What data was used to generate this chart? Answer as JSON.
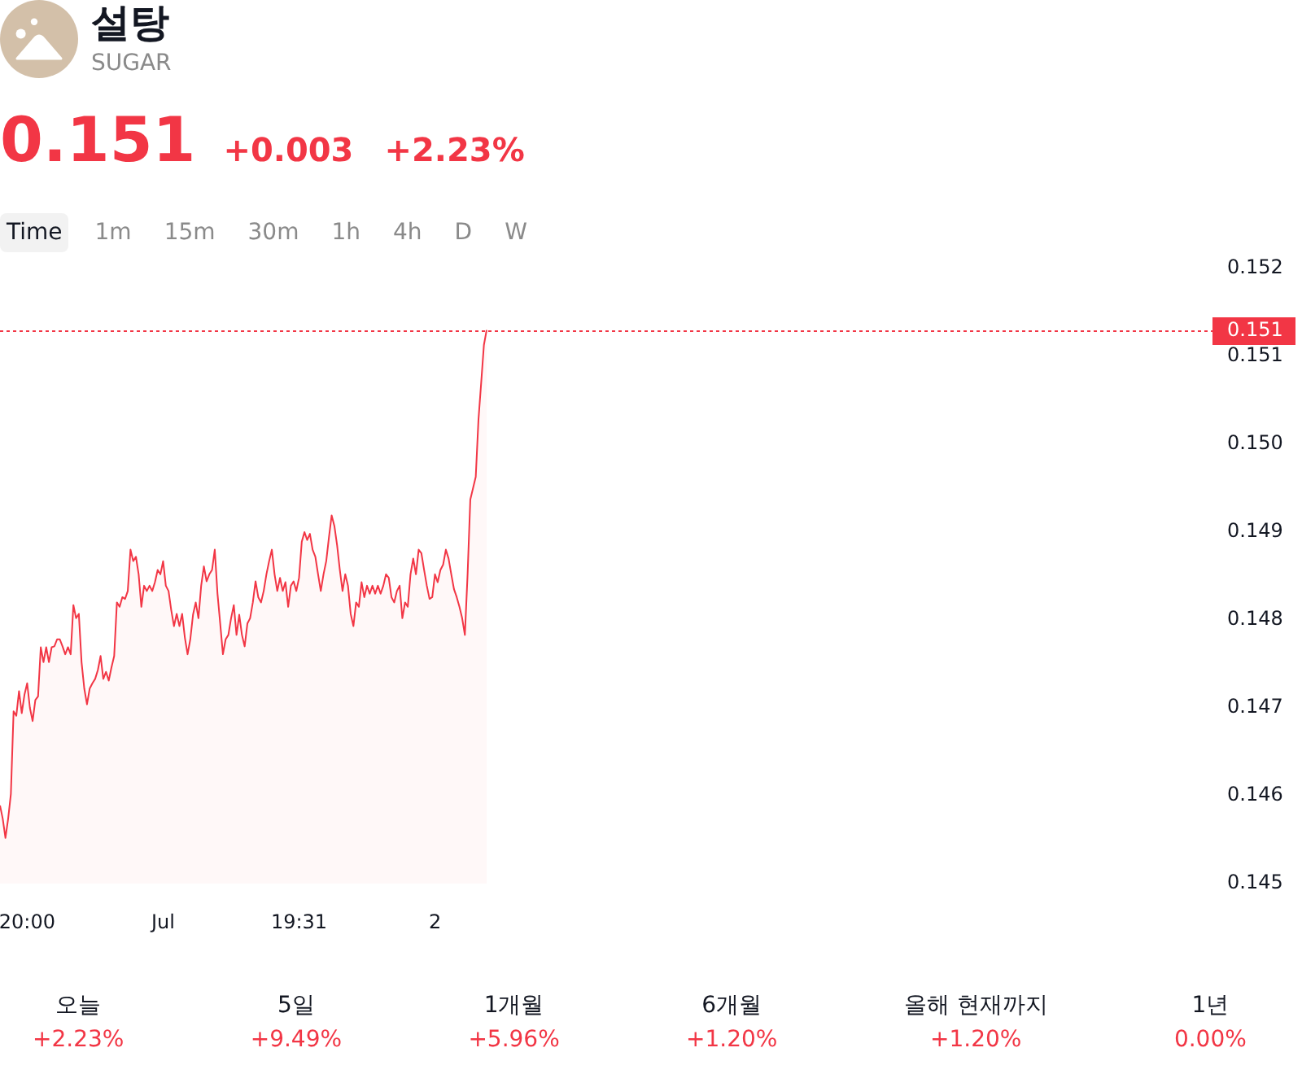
{
  "chart_data": [
    {
      "type": "other",
      "title": "설탕",
      "subtitle": "SUGAR",
      "annotations": [
        "0.151",
        "+0.003",
        "+2.23%"
      ],
      "color": "#f23645"
    },
    {
      "type": "other",
      "annotations": [
        "Time",
        "1m",
        "15m",
        "30m",
        "1h",
        "4h",
        "D",
        "W"
      ]
    },
    {
      "type": "area",
      "color": "#f23645",
      "categories": [
        null,
        null,
        null,
        null,
        null,
        null,
        null,
        null,
        null,
        null,
        "20:00",
        null,
        null,
        null,
        null,
        null,
        null,
        null,
        null,
        null,
        null,
        null,
        null,
        null,
        null,
        null,
        null,
        null,
        null,
        null,
        null,
        null,
        null,
        null,
        null,
        null,
        null,
        null,
        null,
        null,
        null,
        null,
        null,
        null,
        null,
        null,
        null,
        null,
        null,
        null,
        null,
        null,
        null,
        null,
        null,
        null,
        null,
        null,
        null,
        null,
        "Jul",
        null,
        null,
        null,
        null,
        null,
        null,
        null,
        null,
        null,
        null,
        null,
        null,
        null,
        null,
        null,
        null,
        null,
        null,
        null,
        null,
        null,
        null,
        null,
        null,
        null,
        null,
        null,
        null,
        null,
        null,
        null,
        null,
        null,
        null,
        null,
        null,
        null,
        null,
        null,
        null,
        null,
        null,
        null,
        null,
        null,
        null,
        null,
        null,
        null,
        "19:31",
        null,
        null,
        null,
        null,
        null,
        null,
        null,
        null,
        null,
        null,
        null,
        null,
        null,
        null,
        null,
        null,
        null,
        null,
        null,
        null,
        null,
        null,
        null,
        null,
        null,
        null,
        null,
        null,
        null,
        null,
        null,
        null,
        null,
        null,
        null,
        null,
        null,
        null,
        null,
        null,
        null,
        null,
        null,
        null,
        null,
        null,
        null,
        null,
        null,
        "2",
        null,
        null,
        null,
        null,
        null,
        null,
        null,
        null,
        null,
        null,
        null,
        null,
        null,
        null,
        null,
        null,
        null,
        null,
        null,
        null,
        null,
        null,
        null,
        null,
        null,
        null,
        null,
        null,
        null,
        null,
        null,
        null,
        null,
        null,
        null,
        null,
        null,
        null,
        null,
        null,
        null,
        null,
        null,
        null,
        null,
        null,
        null,
        null,
        null,
        null,
        null,
        null,
        null,
        null,
        null,
        null,
        null,
        null,
        null,
        null,
        null,
        null,
        null,
        null,
        null,
        null,
        null,
        null,
        null,
        null,
        null,
        null,
        null,
        null,
        null,
        null,
        null,
        null,
        null,
        null,
        null,
        null,
        null,
        null,
        null,
        null,
        null,
        null,
        null,
        null,
        null,
        null,
        null,
        null,
        null,
        null,
        null,
        null,
        null,
        null,
        null,
        null,
        null,
        null,
        null,
        null,
        null,
        null,
        null,
        null,
        null,
        null,
        null,
        null,
        null,
        null,
        null,
        null,
        null,
        null,
        null,
        null,
        null,
        null,
        null,
        null,
        null,
        null,
        null,
        null,
        null,
        null,
        null,
        null,
        null,
        null,
        null,
        null,
        null,
        null,
        null,
        null,
        null,
        null,
        null,
        null,
        null,
        null,
        null,
        null,
        null,
        null,
        null,
        null,
        null,
        null,
        null,
        null,
        null,
        null,
        null,
        null,
        null,
        null,
        null,
        null,
        null,
        null,
        null,
        null,
        null,
        null,
        null,
        null,
        null,
        null,
        null,
        null,
        null,
        null,
        null,
        null,
        null,
        null,
        null,
        null,
        null,
        null,
        null,
        null,
        null,
        null,
        null,
        null,
        null,
        null,
        null,
        null,
        null,
        null,
        null,
        null,
        null,
        null,
        null,
        null,
        null,
        null,
        null,
        null,
        null,
        null,
        null,
        null,
        null,
        null,
        null,
        null,
        null,
        null,
        null,
        null,
        null,
        null,
        null,
        null,
        null,
        null,
        null,
        null,
        null,
        null,
        null,
        null,
        null,
        null,
        null,
        null,
        null,
        null,
        null,
        null,
        null,
        null,
        null,
        null,
        null,
        null,
        null,
        null,
        null,
        null,
        null,
        null,
        null,
        null,
        null,
        null,
        null,
        null,
        null,
        null,
        null,
        null,
        null,
        null,
        null,
        null,
        null,
        null,
        null,
        null,
        null,
        null,
        null,
        null,
        null,
        null,
        null,
        null,
        null,
        null,
        null,
        null,
        null,
        null
      ],
      "values": [
        0.14589,
        0.14574,
        0.14552,
        0.14574,
        0.14602,
        0.14696,
        0.14691,
        0.14719,
        0.14694,
        0.14715,
        0.14728,
        0.147,
        0.14685,
        0.14709,
        0.14713,
        0.14769,
        0.14752,
        0.14769,
        0.14752,
        0.14769,
        0.1477,
        0.14778,
        0.14778,
        0.1477,
        0.14761,
        0.14769,
        0.14761,
        0.14817,
        0.14802,
        0.14807,
        0.14752,
        0.14722,
        0.14704,
        0.14722,
        0.14728,
        0.14733,
        0.14743,
        0.14759,
        0.14733,
        0.14741,
        0.14731,
        0.14746,
        0.14759,
        0.1482,
        0.14815,
        0.14826,
        0.14824,
        0.14833,
        0.1488,
        0.14867,
        0.14872,
        0.14852,
        0.14815,
        0.14839,
        0.14833,
        0.14839,
        0.14833,
        0.14843,
        0.14857,
        0.14852,
        0.14867,
        0.14839,
        0.14833,
        0.14811,
        0.14793,
        0.14807,
        0.14793,
        0.14807,
        0.1478,
        0.14761,
        0.14778,
        0.14806,
        0.1482,
        0.14802,
        0.14839,
        0.14861,
        0.14844,
        0.14852,
        0.14857,
        0.1488,
        0.1483,
        0.14796,
        0.14761,
        0.14778,
        0.14783,
        0.14802,
        0.14817,
        0.14783,
        0.14806,
        0.14783,
        0.1477,
        0.14796,
        0.14802,
        0.1482,
        0.14844,
        0.14826,
        0.1482,
        0.14833,
        0.14852,
        0.14867,
        0.1488,
        0.14852,
        0.14833,
        0.14848,
        0.14833,
        0.14843,
        0.14815,
        0.14839,
        0.14844,
        0.14833,
        0.14848,
        0.14889,
        0.149,
        0.14891,
        0.14898,
        0.1488,
        0.14872,
        0.14852,
        0.14833,
        0.14852,
        0.14867,
        0.14894,
        0.14919,
        0.14907,
        0.14885,
        0.14857,
        0.14833,
        0.14852,
        0.14839,
        0.14807,
        0.14793,
        0.1482,
        0.14815,
        0.14843,
        0.14826,
        0.14839,
        0.1483,
        0.14839,
        0.1483,
        0.14839,
        0.1483,
        0.14839,
        0.14852,
        0.14848,
        0.14826,
        0.1482,
        0.14833,
        0.14839,
        0.14802,
        0.1482,
        0.14815,
        0.14852,
        0.1487,
        0.14852,
        0.1488,
        0.14876,
        0.14857,
        0.14839,
        0.14824,
        0.14826,
        0.14852,
        0.14843,
        0.14857,
        0.14863,
        0.1488,
        0.1487,
        0.14852,
        0.14835,
        0.14826,
        0.14815,
        0.14802,
        0.14783,
        0.14852,
        0.14937,
        0.1495,
        0.14963,
        0.15028,
        0.1507,
        0.15113,
        0.1513,
        null,
        null,
        null,
        null,
        null,
        null,
        null,
        null,
        null,
        null,
        null,
        null,
        null,
        null,
        null,
        null,
        null,
        null,
        null,
        null,
        null,
        null,
        null,
        null,
        null,
        null,
        null,
        null,
        null,
        null,
        null,
        null,
        null,
        null,
        null,
        null,
        null,
        null,
        null,
        null,
        null,
        null,
        null,
        null,
        null,
        null,
        null,
        null,
        null,
        null,
        null,
        null,
        null,
        null,
        null,
        null,
        null,
        null,
        null,
        null,
        null,
        null,
        null,
        null,
        null,
        null,
        null,
        null,
        null,
        null,
        null,
        null,
        null,
        null,
        null,
        null,
        null,
        null,
        null,
        null,
        null,
        null,
        null,
        null,
        null,
        null,
        null,
        null,
        null,
        null,
        null,
        null,
        null,
        null,
        null,
        null,
        null,
        null,
        null,
        null,
        null,
        null,
        null,
        null,
        null,
        null,
        null,
        null,
        null,
        null,
        null,
        null,
        null,
        null,
        null,
        null,
        null,
        null,
        null,
        null,
        null,
        null,
        null,
        null,
        null,
        null,
        null,
        null,
        null,
        null,
        null,
        null,
        null,
        null,
        null,
        null,
        null,
        null,
        null,
        null,
        null,
        null,
        null,
        null,
        null,
        null,
        null,
        null,
        null,
        null,
        null,
        null,
        null,
        null,
        null,
        null,
        null,
        null,
        null,
        null,
        null,
        null,
        null,
        null,
        null,
        null,
        null,
        null,
        null,
        null,
        null,
        null,
        null,
        null,
        null,
        null,
        null,
        null,
        null,
        null,
        null,
        null,
        null,
        null,
        null,
        null,
        null,
        null,
        null,
        null,
        null,
        null,
        null,
        null,
        null,
        null,
        null,
        null,
        null,
        null,
        null,
        null,
        null,
        null,
        null,
        null,
        null,
        null,
        null,
        null,
        null,
        null,
        null,
        null,
        null,
        null,
        null,
        null,
        null,
        null,
        null,
        null,
        null,
        null,
        null,
        null,
        null,
        null,
        null,
        null,
        null,
        null,
        null,
        null,
        null,
        null,
        null,
        null,
        null,
        null,
        null,
        null,
        null,
        null,
        null,
        null,
        null,
        null,
        null,
        null,
        null,
        null,
        null,
        null,
        null,
        null,
        null,
        null,
        null,
        null,
        null,
        null,
        null,
        null,
        null,
        null,
        null
      ],
      "ylim": [
        0.145,
        0.152
      ],
      "yticks": [
        0.145,
        0.146,
        0.147,
        0.148,
        0.149,
        {
          "value": 0.15,
          "label": "0.150"
        },
        0.151,
        0.152
      ],
      "ref_lines": [
        {
          "axis": "y",
          "value": 0.1513,
          "label": "0.151",
          "color": "#f23645",
          "line_style": "dotted"
        }
      ]
    },
    {
      "type": "other",
      "categories": [
        "오늘",
        "5일",
        "1개월",
        "6개월",
        "올해 현재까지",
        "1년"
      ],
      "values": [
        2.23,
        9.49,
        5.96,
        1.2,
        1.2,
        0
      ],
      "value_labels": [
        "+2.23%",
        "+9.49%",
        "+5.96%",
        "+1.20%",
        "+1.20%",
        "0.00%"
      ],
      "color": "#f23645"
    }
  ]
}
